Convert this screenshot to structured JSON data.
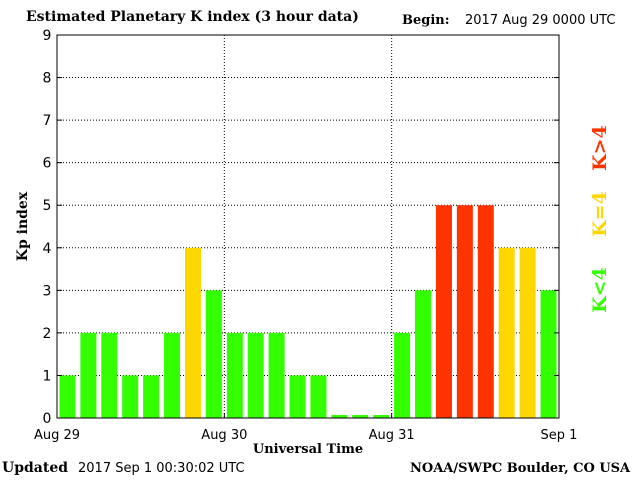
{
  "header": {
    "title": "Estimated Planetary K index (3 hour data)",
    "begin_label": "Begin:",
    "begin_value": "2017 Aug 29 0000 UTC"
  },
  "footer": {
    "updated_label": "Updated",
    "updated_value": "2017 Sep  1 00:30:02 UTC",
    "credit": "NOAA/SWPC Boulder, CO USA"
  },
  "legend": {
    "low": "K<4",
    "mid": "K=4",
    "high": "K>4"
  },
  "colors": {
    "low": "#33ff00",
    "mid": "#ffd700",
    "high": "#ff3300"
  },
  "chart_data": {
    "type": "bar",
    "title": "Estimated Planetary K index (3 hour data)",
    "xlabel": "Universal Time",
    "ylabel": "Kp index",
    "ylim": [
      0,
      9
    ],
    "yticks": [
      "0",
      "1",
      "2",
      "3",
      "4",
      "5",
      "6",
      "7",
      "8",
      "9"
    ],
    "xticks": [
      "Aug 29",
      "Aug 30",
      "Aug 31",
      "Sep 1"
    ],
    "grid": true,
    "legend_position": "right",
    "values": [
      1,
      2,
      2,
      1,
      1,
      2,
      4,
      3,
      2,
      2,
      2,
      1,
      1,
      0,
      0,
      0,
      2,
      3,
      5,
      5,
      5,
      4,
      4,
      3
    ]
  }
}
